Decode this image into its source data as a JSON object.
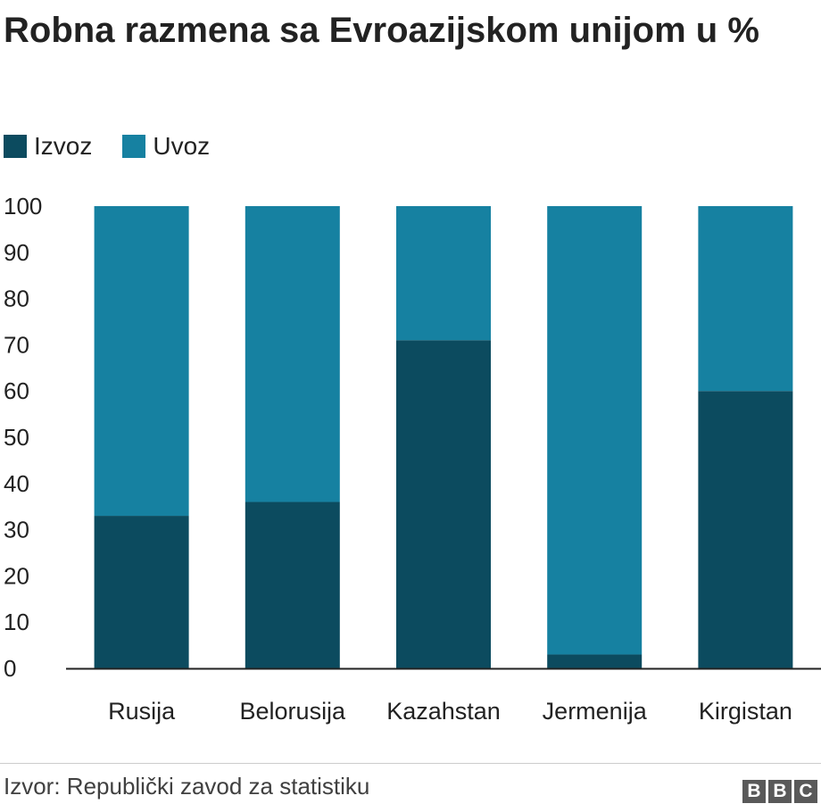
{
  "title": "Robna razmena sa Evroazijskom unijom u %",
  "legend": [
    {
      "label": "Izvoz",
      "color": "#0c4b5f"
    },
    {
      "label": "Uvoz",
      "color": "#1681a1"
    }
  ],
  "chart_data": {
    "type": "bar",
    "stacked": true,
    "title": "Robna razmena sa Evroazijskom unijom u %",
    "categories": [
      "Rusija",
      "Belorusija",
      "Kazahstan",
      "Jermenija",
      "Kirgistan"
    ],
    "series": [
      {
        "name": "Izvoz",
        "color": "#0c4b5f",
        "values": [
          33,
          36,
          71,
          3,
          60
        ]
      },
      {
        "name": "Uvoz",
        "color": "#1681a1",
        "values": [
          67,
          64,
          29,
          97,
          40
        ]
      }
    ],
    "ylim": [
      0,
      100
    ],
    "yticks": [
      0,
      10,
      20,
      30,
      40,
      50,
      60,
      70,
      80,
      90,
      100
    ],
    "xlabel": "",
    "ylabel": "",
    "grid": false,
    "legend_position": "top-left"
  },
  "footer": {
    "source": "Izvor: Republički zavod za statistiku",
    "logo_letters": [
      "B",
      "B",
      "C"
    ]
  }
}
